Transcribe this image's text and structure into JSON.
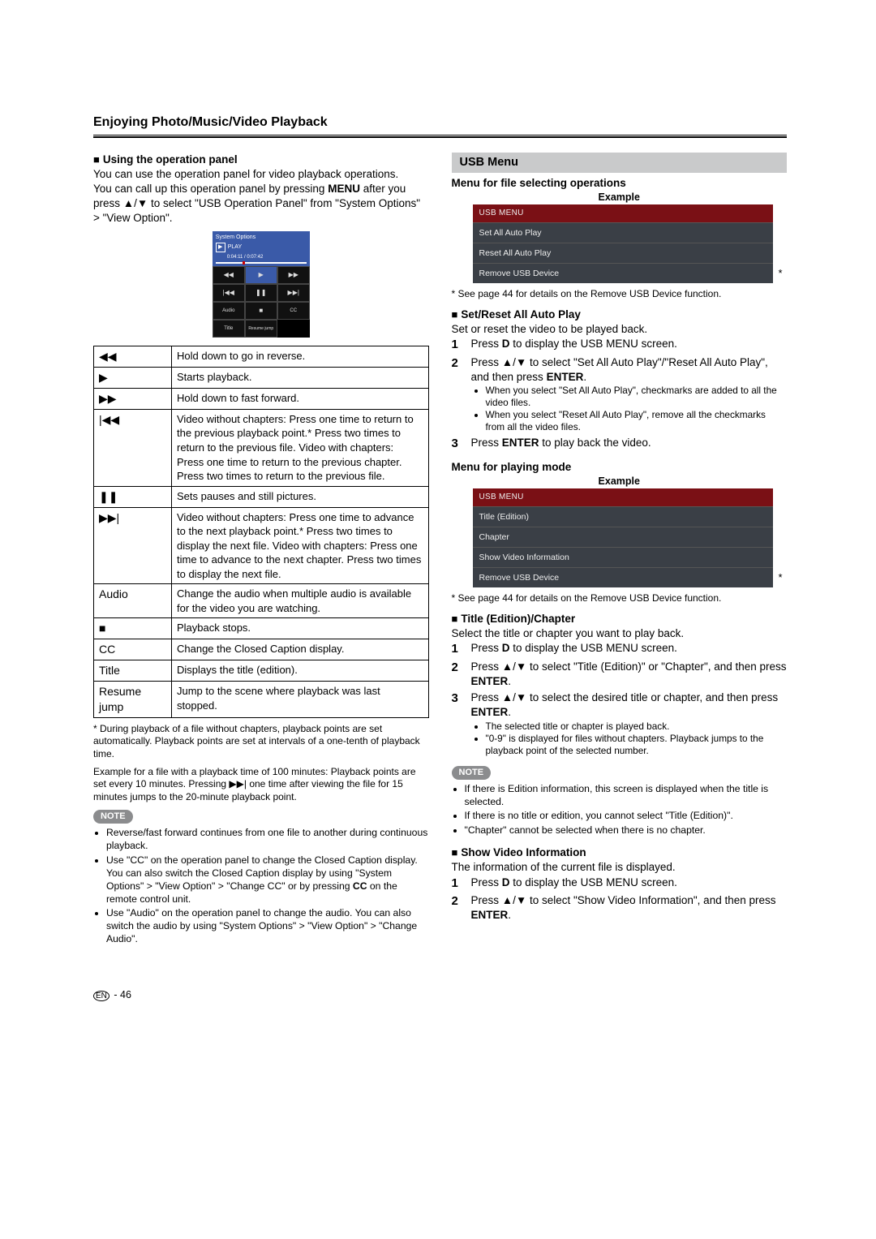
{
  "page_title": "Enjoying Photo/Music/Video Playback",
  "left": {
    "h1": "Using the operation panel",
    "p1": "You can use the operation panel for video playback operations.",
    "p2a": "You can call up this operation panel by pressing ",
    "p2b": "MENU",
    "p2c": " after you press ",
    "p2d": " to select \"USB Operation Panel\" from \"System Options\" > \"View Option\".",
    "panel": {
      "title": "System Options",
      "play": "PLAY",
      "time": "0:04:11 / 0:07:42",
      "cells": [
        "◀◀",
        "▶",
        "▶▶",
        "|◀◀",
        "❚❚",
        "▶▶|",
        "Audio",
        "■",
        "CC",
        "Title",
        "Resume jump",
        ""
      ]
    },
    "table": [
      {
        "icon": "◀◀",
        "desc": "Hold down to go in reverse."
      },
      {
        "icon": "▶",
        "desc": "Starts playback."
      },
      {
        "icon": "▶▶",
        "desc": "Hold down to fast forward."
      },
      {
        "icon": "|◀◀",
        "desc": "Video without chapters: Press one time to return to the previous playback point.* Press two times to return to the previous file. Video with chapters: Press one time to return to the previous chapter. Press two times to return to the previous file."
      },
      {
        "icon": "❚❚",
        "desc": "Sets pauses and still pictures."
      },
      {
        "icon": "▶▶|",
        "desc": "Video without chapters: Press one time to advance to the next playback point.* Press two times to display the next file. Video with chapters: Press one time to advance to the next chapter. Press two times to display the next file."
      },
      {
        "icon": "Audio",
        "desc": "Change the audio when multiple audio is available for the video you are watching."
      },
      {
        "icon": "■",
        "desc": "Playback stops."
      },
      {
        "icon": "CC",
        "desc": "Change the Closed Caption display."
      },
      {
        "icon": "Title",
        "desc": "Displays the title (edition)."
      },
      {
        "icon": "Resume jump",
        "desc": "Jump to the scene where playback was last stopped."
      }
    ],
    "foot1": "* During playback of a file without chapters, playback points are set automatically. Playback points are set at intervals of a one-tenth of playback time.",
    "foot2a": "Example for a file with a playback time of 100 minutes: Playback points are set every 10 minutes. Pressing ",
    "foot2b": " one time after viewing the file for 15 minutes jumps to the 20-minute playback point.",
    "note": "NOTE",
    "notes": [
      "Reverse/fast forward continues from one file to another during continuous playback.",
      "Use \"CC\" on the operation panel to change the Closed Caption display. You can also switch the Closed Caption display by using \"System Options\" > \"View Option\" > \"Change CC\" or by pressing CC on the remote control unit.",
      "Use \"Audio\" on the operation panel to change the audio. You can also switch the audio by using \"System Options\" > \"View Option\" > \"Change Audio\"."
    ]
  },
  "right": {
    "bar": "USB Menu",
    "h1": "Menu for file selecting operations",
    "ex": "Example",
    "menu1_head": "USB MENU",
    "menu1": [
      "Set All Auto Play",
      "Reset All Auto Play",
      "Remove USB Device"
    ],
    "ref1": "* See page 44 for details on the Remove USB Device function.",
    "h2": "Set/Reset All Auto Play",
    "p2": "Set or reset the video to be played back.",
    "steps1": [
      {
        "n": "1",
        "t": "Press D to display the USB MENU screen.",
        "bold": [
          "D"
        ]
      },
      {
        "n": "2",
        "t": "Press ▲/▼ to select \"Set All Auto Play\"/\"Reset All Auto Play\", and then press ENTER.",
        "bold": [
          "ENTER"
        ],
        "sub": [
          "When you select \"Set All Auto Play\", checkmarks are added to all the video files.",
          "When you select \"Reset All Auto Play\", remove all the checkmarks from all the video files."
        ]
      },
      {
        "n": "3",
        "t": "Press ENTER to play back the video.",
        "bold": [
          "ENTER"
        ]
      }
    ],
    "h3": "Menu for playing mode",
    "menu2_head": "USB MENU",
    "menu2": [
      "Title (Edition)",
      "Chapter",
      "Show Video Information",
      "Remove USB Device"
    ],
    "ref2": "* See page 44 for details on the Remove USB Device function.",
    "h4": "Title (Edition)/Chapter",
    "p4": "Select the title or chapter you want to play back.",
    "steps2": [
      {
        "n": "1",
        "t": "Press D to display the USB MENU screen.",
        "bold": [
          "D"
        ]
      },
      {
        "n": "2",
        "t": "Press ▲/▼ to select \"Title (Edition)\" or \"Chapter\", and then press ENTER.",
        "bold": [
          "ENTER"
        ]
      },
      {
        "n": "3",
        "t": "Press ▲/▼ to select the desired title or chapter, and then press ENTER.",
        "bold": [
          "ENTER"
        ],
        "sub": [
          "The selected title or chapter is played back.",
          "\"0-9\" is displayed for files without chapters. Playback jumps to the playback point of the selected number."
        ]
      }
    ],
    "note": "NOTE",
    "notes2": [
      "If there is Edition information, this screen is displayed when the title is selected.",
      "If there is no title or edition, you cannot select \"Title (Edition)\".",
      "\"Chapter\" cannot be selected when there is no chapter."
    ],
    "h5": "Show Video Information",
    "p5": "The information of the current file is displayed.",
    "steps3": [
      {
        "n": "1",
        "t": "Press D to display the USB MENU screen.",
        "bold": [
          "D"
        ]
      },
      {
        "n": "2",
        "t": "Press ▲/▼ to select \"Show Video Information\", and then press ENTER.",
        "bold": [
          "ENTER"
        ]
      }
    ]
  },
  "pagenum_prefix": "EN",
  "pagenum": " - 46"
}
